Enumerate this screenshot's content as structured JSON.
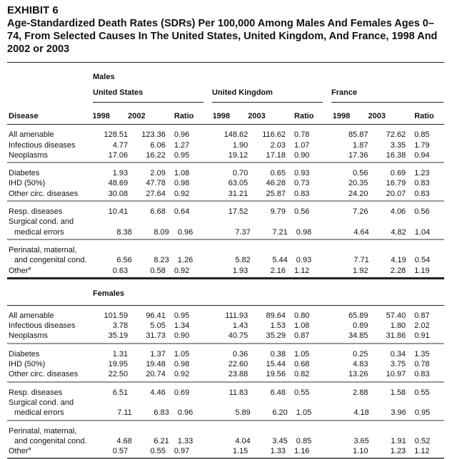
{
  "exhibit": "EXHIBIT 6",
  "title": "Age-Standardized Death Rates (SDRs) Per 100,000 Among Males And Females Ages 0–74, From Selected Causes In The United States, United Kingdom, And France, 1998 And 2002 or 2003",
  "countries": [
    "United States",
    "United Kingdom",
    "France"
  ],
  "col_headers": [
    "Disease",
    "1998",
    "2002",
    "Ratio",
    "1998",
    "2003",
    "Ratio",
    "1998",
    "2003",
    "Ratio"
  ],
  "sections": [
    {
      "label": "Males",
      "groups": [
        [
          [
            "All amenable",
            "128.51",
            "123.36",
            "0.96",
            "148.62",
            "116.62",
            "0.78",
            "85.87",
            "72.62",
            "0.85"
          ],
          [
            "Infectious diseases",
            "4.77",
            "6.06",
            "1.27",
            "1.90",
            "2.03",
            "1.07",
            "1.87",
            "3.35",
            "1.79"
          ],
          [
            "Neoplasms",
            "17.06",
            "16.22",
            "0.95",
            "19.12",
            "17.18",
            "0.90",
            "17.36",
            "16.38",
            "0.94"
          ]
        ],
        [
          [
            "Diabetes",
            "1.93",
            "2.09",
            "1.08",
            "0.70",
            "0.65",
            "0.93",
            "0.56",
            "0.69",
            "1.23"
          ],
          [
            "IHD (50%)",
            "48.69",
            "47.78",
            "0.98",
            "63.05",
            "46.28",
            "0.73",
            "20.35",
            "16.79",
            "0.83"
          ],
          [
            "Other circ. diseases",
            "30.08",
            "27.64",
            "0.92",
            "31.21",
            "25.87",
            "0.83",
            "24.20",
            "20.07",
            "0.83"
          ]
        ],
        [
          [
            "Resp. diseases",
            "10.41",
            "6.68",
            "0.64",
            "17.52",
            "9.79",
            "0.56",
            "7.26",
            "4.06",
            "0.56"
          ],
          [
            "Surgical cond. and",
            "",
            "",
            "",
            "",
            "",
            "",
            "",
            "",
            ""
          ],
          [
            "  medical errors",
            "8.38",
            "8.09",
            "0.96",
            "7.37",
            "7.21",
            "0.98",
            "4.64",
            "4.82",
            "1.04"
          ]
        ],
        [
          [
            "Perinatal, maternal,",
            "",
            "",
            "",
            "",
            "",
            "",
            "",
            "",
            ""
          ],
          [
            "  and congenital cond.",
            "6.56",
            "8.23",
            "1.26",
            "5.82",
            "5.44",
            "0.93",
            "7.71",
            "4.19",
            "0.54"
          ],
          [
            "Other",
            "0.63",
            "0.58",
            "0.92",
            "1.93",
            "2.16",
            "1.12",
            "1.92",
            "2.28",
            "1.19"
          ]
        ]
      ]
    },
    {
      "label": "Females",
      "groups": [
        [
          [
            "All amenable",
            "101.59",
            "96.41",
            "0.95",
            "111.93",
            "89.64",
            "0.80",
            "65.89",
            "57.40",
            "0.87"
          ],
          [
            "Infectious diseases",
            "3.78",
            "5.05",
            "1.34",
            "1.43",
            "1.53",
            "1.08",
            "0.89",
            "1.80",
            "2.02"
          ],
          [
            "Neoplasms",
            "35.19",
            "31.73",
            "0.90",
            "40.75",
            "35.29",
            "0.87",
            "34.85",
            "31.86",
            "0.91"
          ]
        ],
        [
          [
            "Diabetes",
            "1.31",
            "1.37",
            "1.05",
            "0.36",
            "0.38",
            "1.05",
            "0.25",
            "0.34",
            "1.35"
          ],
          [
            "IHD (50%)",
            "19.95",
            "19.48",
            "0.98",
            "22.60",
            "15.44",
            "0.68",
            "4.83",
            "3.75",
            "0.78"
          ],
          [
            "Other circ. diseases",
            "22.50",
            "20.74",
            "0.92",
            "23.88",
            "19.56",
            "0.82",
            "13.26",
            "10.97",
            "0.83"
          ]
        ],
        [
          [
            "Resp. diseases",
            "6.51",
            "4.46",
            "0.69",
            "11.83",
            "6.48",
            "0.55",
            "2.88",
            "1.58",
            "0.55"
          ],
          [
            "Surgical cond. and",
            "",
            "",
            "",
            "",
            "",
            "",
            "",
            "",
            ""
          ],
          [
            "  medical errors",
            "7.11",
            "6.83",
            "0.96",
            "5.89",
            "6.20",
            "1.05",
            "4.18",
            "3.96",
            "0.95"
          ]
        ],
        [
          [
            "Perinatal, maternal,",
            "",
            "",
            "",
            "",
            "",
            "",
            "",
            "",
            ""
          ],
          [
            "  and congenital cond.",
            "4.68",
            "6.21",
            "1.33",
            "4.04",
            "3.45",
            "0.85",
            "3.65",
            "1.91",
            "0.52"
          ],
          [
            "Other",
            "0.57",
            "0.55",
            "0.97",
            "1.15",
            "1.33",
            "1.16",
            "1.10",
            "1.23",
            "1.12"
          ]
        ]
      ]
    }
  ],
  "footnote_marker": "a"
}
